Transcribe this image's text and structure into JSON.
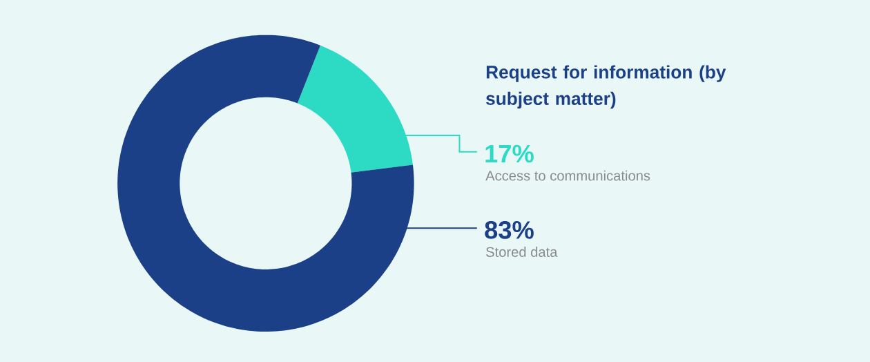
{
  "chart_data": {
    "type": "donut",
    "title": "Request for information (by subject matter)",
    "categories": [
      "Access to communications",
      "Stored data"
    ],
    "values": [
      17,
      83
    ],
    "value_labels": [
      "17%",
      "83%"
    ],
    "colors": [
      "#2ddbc4",
      "#1b4088"
    ]
  }
}
